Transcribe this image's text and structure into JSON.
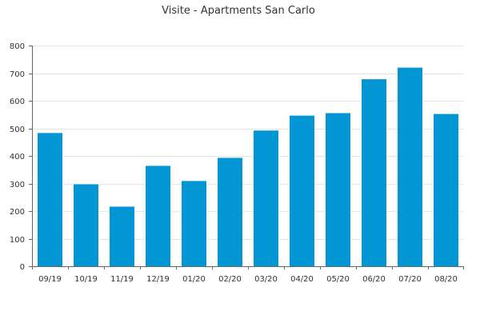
{
  "chart_data": {
    "type": "bar",
    "title": "Visite - Apartments San Carlo",
    "xlabel": "",
    "ylabel": "",
    "categories": [
      "09/19",
      "10/19",
      "11/19",
      "12/19",
      "01/20",
      "02/20",
      "03/20",
      "04/20",
      "05/20",
      "06/20",
      "07/20",
      "08/20"
    ],
    "values": [
      483,
      297,
      216,
      364,
      309,
      393,
      492,
      546,
      555,
      678,
      720,
      552
    ],
    "ylim": [
      0,
      800
    ],
    "yticks": [
      0,
      100,
      200,
      300,
      400,
      500,
      600,
      700,
      800
    ],
    "grid": true,
    "legend": "none",
    "bar_color": "#0396d4"
  }
}
